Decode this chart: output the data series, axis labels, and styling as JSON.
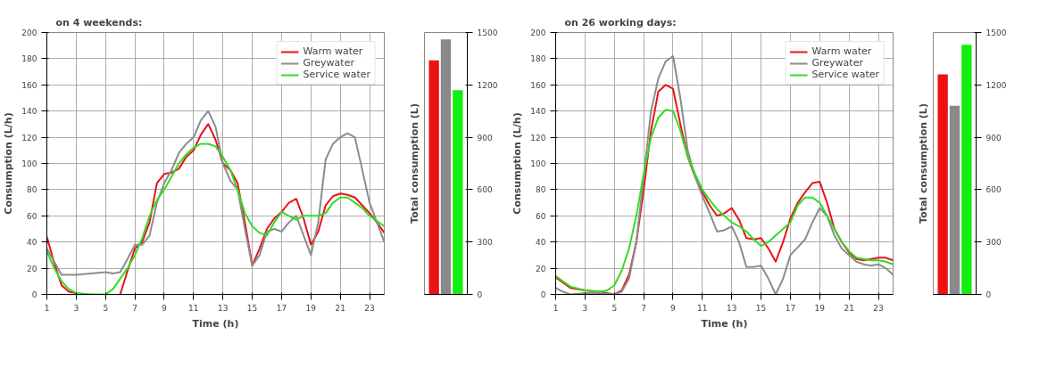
{
  "chart_data": [
    {
      "type": "line",
      "title": "on 4 weekends:",
      "xlabel": "Time (h)",
      "ylabel": "Consumption (L/h)",
      "xlim": [
        1,
        24
      ],
      "xticks": [
        1,
        3,
        5,
        7,
        9,
        11,
        13,
        15,
        17,
        19,
        21,
        23
      ],
      "ylim": [
        0,
        200
      ],
      "yticks": [
        0,
        20,
        40,
        60,
        80,
        100,
        120,
        140,
        160,
        180,
        200
      ],
      "grid": true,
      "legend": "top right",
      "series": [
        {
          "name": "Warm water",
          "color": "#e8121a",
          "x": [
            1,
            1.5,
            2,
            2.5,
            3,
            4,
            5,
            6,
            6.5,
            7,
            7.5,
            8,
            8.5,
            9,
            9.5,
            10,
            10.5,
            11,
            11.5,
            12,
            12.5,
            13,
            13.5,
            14,
            14.5,
            15,
            15.5,
            16,
            16.5,
            17,
            17.5,
            18,
            18.5,
            19,
            19.5,
            20,
            20.5,
            21,
            21.5,
            22,
            22.5,
            23,
            23.5,
            24
          ],
          "values": [
            44,
            24,
            7,
            2,
            1,
            null,
            null,
            0,
            18,
            35,
            40,
            55,
            85,
            92,
            93,
            96,
            105,
            110,
            122,
            130,
            118,
            100,
            95,
            85,
            55,
            22,
            35,
            50,
            58,
            63,
            70,
            73,
            58,
            38,
            48,
            68,
            75,
            77,
            76,
            74,
            68,
            62,
            55,
            47
          ]
        },
        {
          "name": "Greywater",
          "color": "#8c8c8c",
          "x": [
            1,
            1.5,
            2,
            3,
            4,
            5,
            5.5,
            6,
            6.5,
            7,
            7.5,
            8,
            8.5,
            9,
            9.5,
            10,
            10.5,
            11,
            11.5,
            12,
            12.5,
            13,
            13.5,
            14,
            14.5,
            15,
            15.5,
            16,
            16.5,
            17,
            17.5,
            18,
            18.5,
            19,
            19.5,
            20,
            20.5,
            21,
            21.5,
            22,
            22.5,
            23,
            23.5,
            24
          ],
          "values": [
            35,
            25,
            15,
            15,
            16,
            17,
            16,
            17,
            27,
            38,
            38,
            45,
            70,
            85,
            95,
            108,
            115,
            120,
            133,
            140,
            128,
            100,
            87,
            80,
            50,
            22,
            30,
            48,
            50,
            48,
            55,
            60,
            45,
            30,
            55,
            103,
            115,
            120,
            123,
            120,
            95,
            70,
            55,
            40
          ]
        },
        {
          "name": "Service water",
          "color": "#33dd22",
          "x": [
            1,
            1.5,
            2,
            2.5,
            3,
            4,
            5,
            5.5,
            6,
            6.5,
            7,
            7.5,
            8,
            8.5,
            9,
            9.5,
            10,
            10.5,
            11,
            11.5,
            12,
            12.5,
            13,
            13.5,
            14,
            14.5,
            15,
            15.5,
            16,
            16.5,
            17,
            17.5,
            18,
            18.5,
            19,
            19.5,
            20,
            20.5,
            21,
            21.5,
            22,
            22.5,
            23,
            23.5,
            24
          ],
          "values": [
            33,
            20,
            10,
            4,
            1,
            0,
            0,
            4,
            12,
            20,
            30,
            43,
            60,
            72,
            80,
            90,
            100,
            107,
            112,
            115,
            115,
            113,
            105,
            95,
            80,
            62,
            52,
            47,
            45,
            55,
            63,
            60,
            57,
            60,
            60,
            60,
            62,
            70,
            74,
            74,
            70,
            66,
            60,
            56,
            52
          ]
        }
      ]
    },
    {
      "type": "bar",
      "ylabel": "Total consumption (L)",
      "categories": [
        null,
        null,
        null
      ],
      "values": [
        1340,
        1460,
        1170
      ],
      "colors": [
        "#ee1111",
        "#8a8a8a",
        "#11ee11"
      ],
      "ylim": [
        0,
        1500
      ],
      "yticks": [
        0,
        300,
        600,
        900,
        1200,
        1500
      ]
    },
    {
      "type": "line",
      "title": "on 26 working days:",
      "xlabel": "Time (h)",
      "ylabel": "Consumption (L/h)",
      "xlim": [
        1,
        24
      ],
      "xticks": [
        1,
        3,
        5,
        7,
        9,
        11,
        13,
        15,
        17,
        19,
        21,
        23
      ],
      "ylim": [
        0,
        200
      ],
      "yticks": [
        0,
        20,
        40,
        60,
        80,
        100,
        120,
        140,
        160,
        180,
        200
      ],
      "grid": true,
      "legend": "top right",
      "series": [
        {
          "name": "Warm water",
          "color": "#e8121a",
          "x": [
            1,
            1.5,
            2,
            3,
            4,
            4.5,
            5,
            5.5,
            6,
            6.5,
            7,
            7.5,
            8,
            8.5,
            9,
            9.5,
            10,
            10.5,
            11,
            11.5,
            12,
            12.5,
            13,
            13.5,
            14,
            14.5,
            15,
            15.5,
            16,
            16.5,
            17,
            17.5,
            18,
            18.5,
            19,
            19.5,
            20,
            20.5,
            21,
            21.5,
            22,
            22.5,
            23,
            23.5,
            24
          ],
          "values": [
            13,
            9,
            5,
            3,
            2,
            1,
            0,
            3,
            15,
            40,
            80,
            125,
            155,
            160,
            157,
            130,
            105,
            90,
            78,
            68,
            60,
            62,
            66,
            57,
            43,
            42,
            43,
            35,
            25,
            40,
            58,
            70,
            78,
            85,
            86,
            70,
            50,
            40,
            32,
            27,
            26,
            27,
            28,
            28,
            26
          ]
        },
        {
          "name": "Greywater",
          "color": "#8c8c8c",
          "x": [
            1,
            1.5,
            2,
            3,
            4,
            5,
            5.5,
            6,
            6.5,
            7,
            7.5,
            8,
            8.5,
            9,
            9.5,
            10,
            10.5,
            11,
            11.5,
            12,
            12.5,
            13,
            13.5,
            14,
            14.5,
            15,
            15.5,
            16,
            16.5,
            17,
            17.5,
            18,
            18.5,
            19,
            19.5,
            20,
            20.5,
            21,
            21.5,
            22,
            22.5,
            23,
            23.5,
            24
          ],
          "values": [
            5,
            2,
            0,
            1,
            1,
            0,
            2,
            12,
            40,
            90,
            140,
            165,
            178,
            182,
            150,
            110,
            90,
            75,
            62,
            48,
            49,
            52,
            40,
            21,
            21,
            22,
            12,
            0,
            12,
            30,
            36,
            42,
            55,
            66,
            60,
            45,
            35,
            30,
            25,
            23,
            22,
            23,
            20,
            15
          ]
        },
        {
          "name": "Service water",
          "color": "#33dd22",
          "x": [
            1,
            1.5,
            2,
            3,
            4,
            4.5,
            5,
            5.5,
            6,
            6.5,
            7,
            7.5,
            8,
            8.5,
            9,
            9.5,
            10,
            10.5,
            11,
            11.5,
            12,
            12.5,
            13,
            13.5,
            14,
            14.5,
            15,
            15.5,
            16,
            16.5,
            17,
            17.5,
            18,
            18.5,
            19,
            19.5,
            20,
            20.5,
            21,
            21.5,
            22,
            22.5,
            23,
            23.5,
            24
          ],
          "values": [
            14,
            10,
            6,
            3,
            2,
            3,
            7,
            18,
            35,
            60,
            92,
            120,
            135,
            141,
            140,
            125,
            105,
            92,
            80,
            72,
            65,
            60,
            55,
            52,
            48,
            42,
            37,
            40,
            45,
            50,
            55,
            68,
            74,
            74,
            70,
            60,
            50,
            40,
            33,
            28,
            27,
            26,
            26,
            25,
            23
          ]
        }
      ]
    },
    {
      "type": "bar",
      "ylabel": "Total consumption (L)",
      "categories": [
        null,
        null,
        null
      ],
      "values": [
        1260,
        1080,
        1430
      ],
      "colors": [
        "#ee1111",
        "#8a8a8a",
        "#11ee11"
      ],
      "ylim": [
        0,
        1500
      ],
      "yticks": [
        0,
        300,
        600,
        900,
        1200,
        1500
      ]
    }
  ]
}
